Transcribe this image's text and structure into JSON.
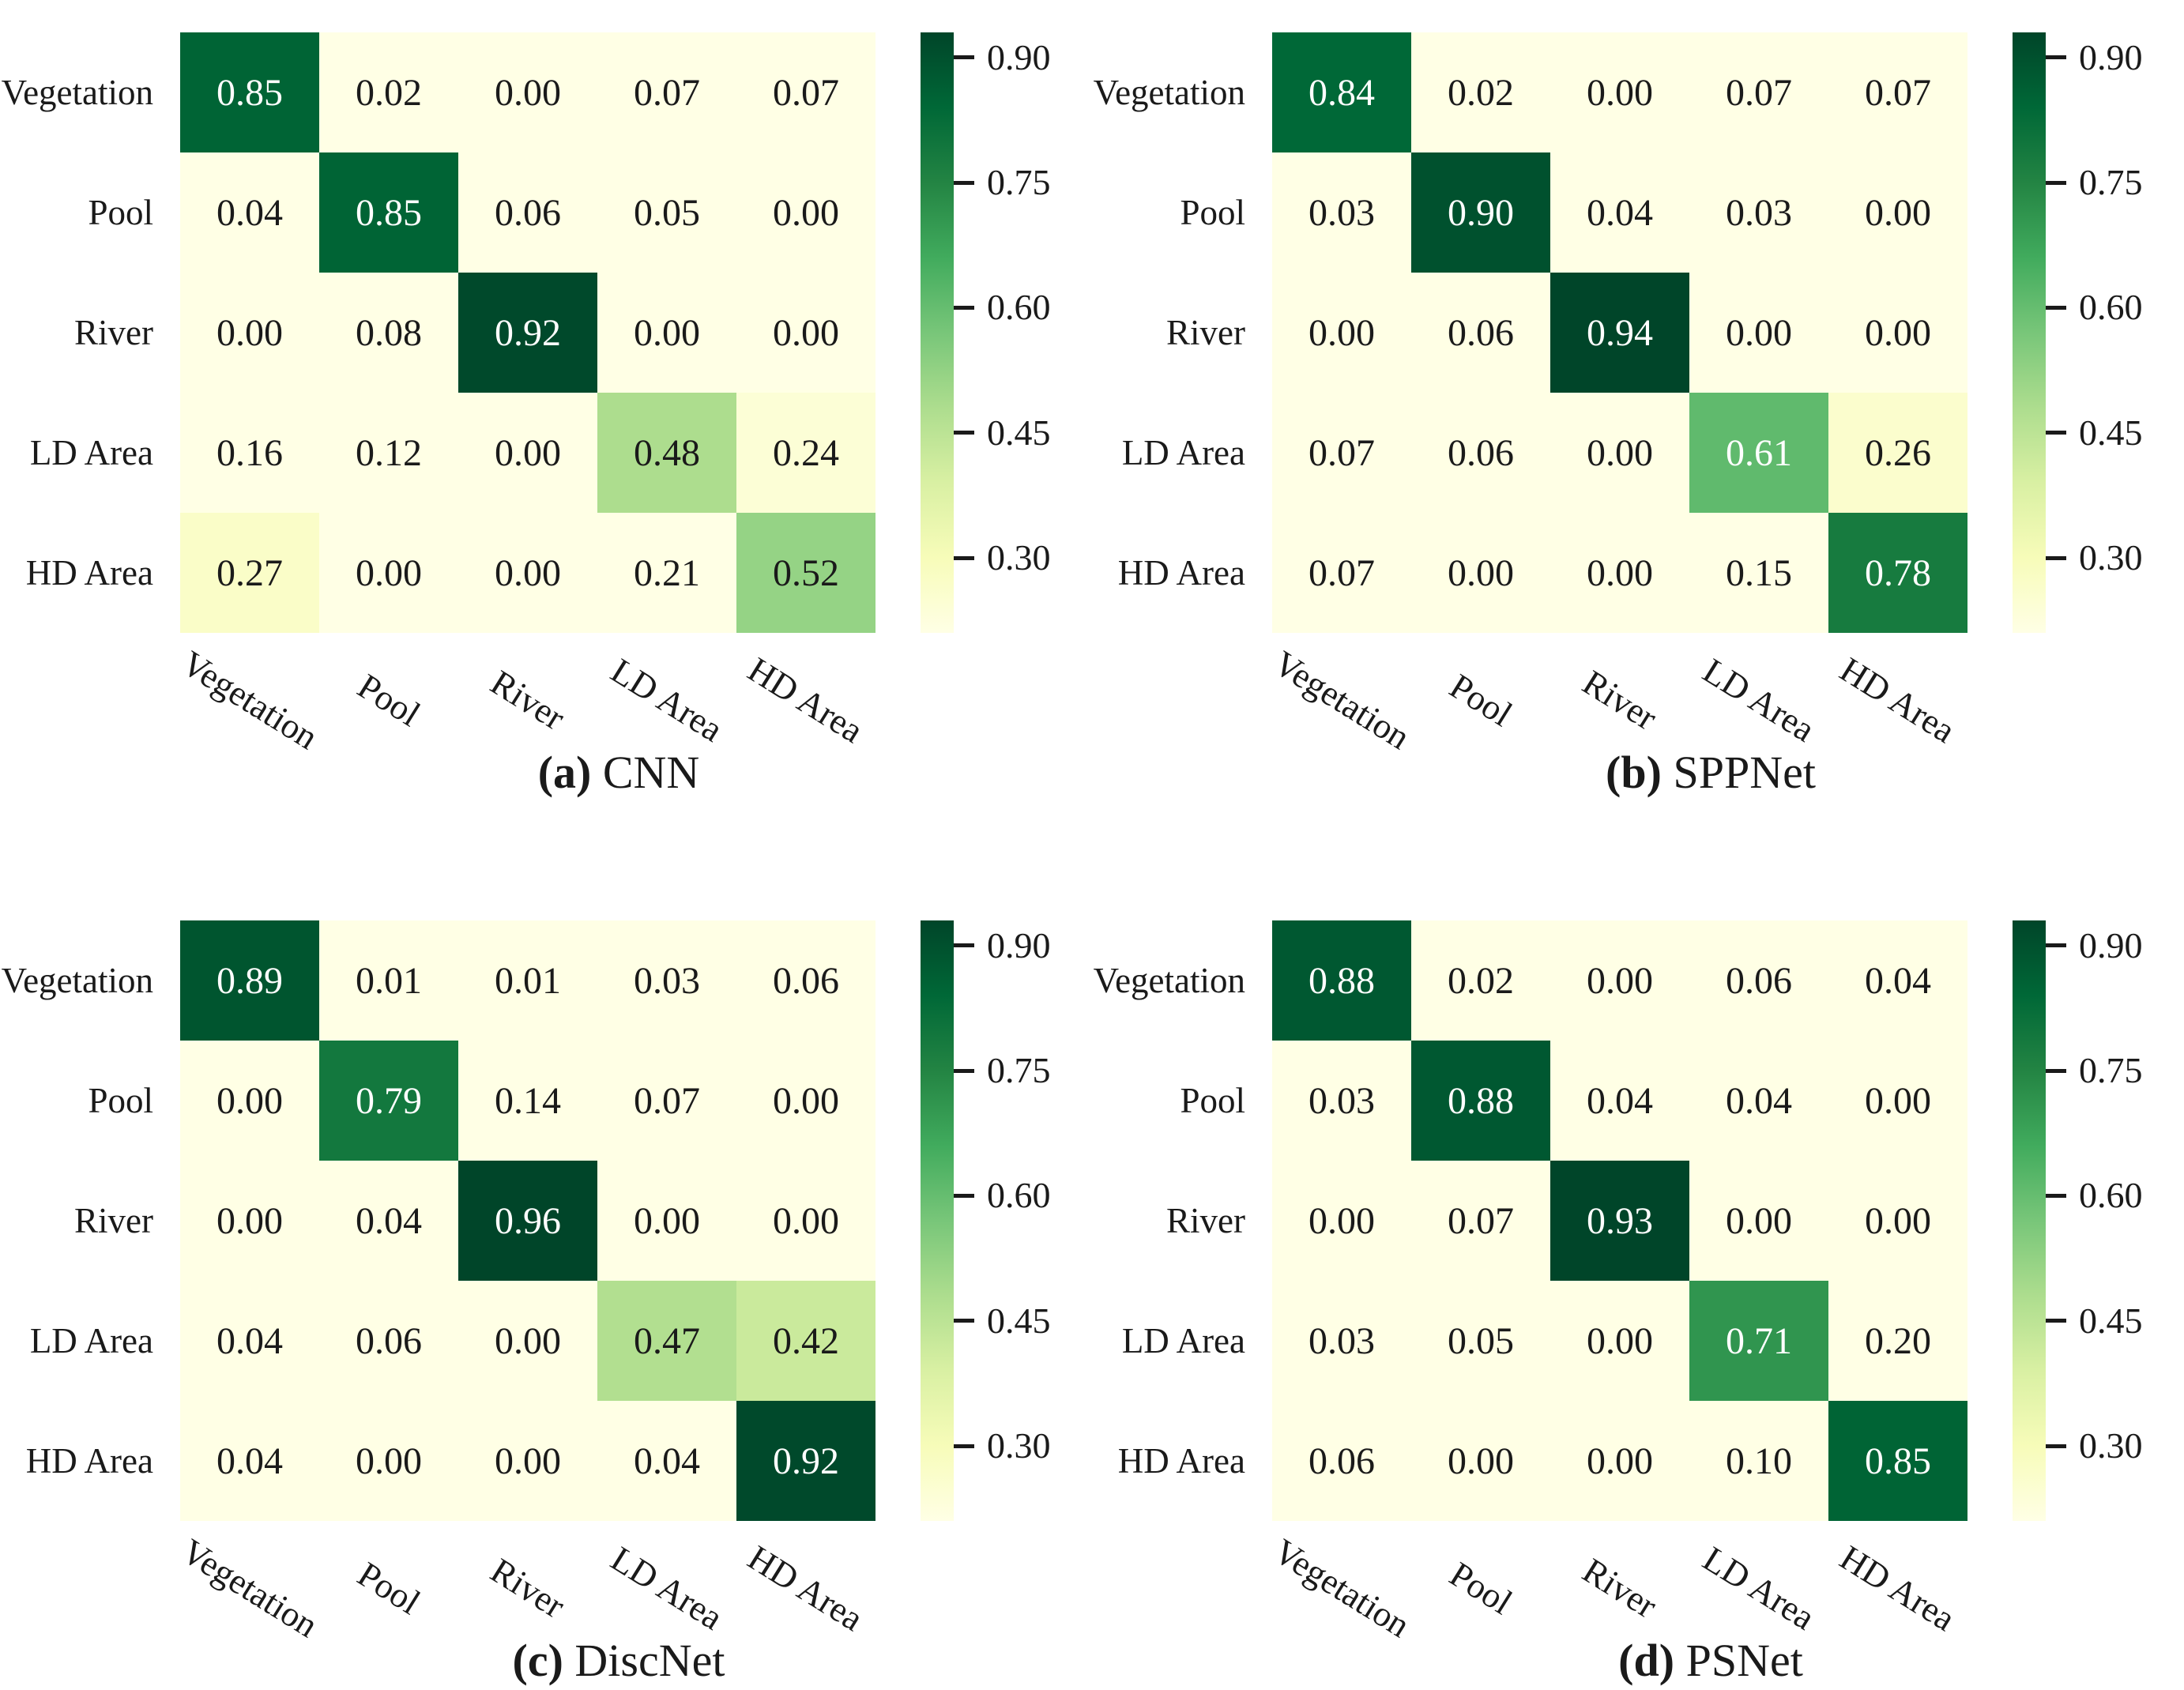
{
  "figure": {
    "background": "#ffffff",
    "text_color": "#1a1a1a"
  },
  "colormap": {
    "name": "YlGn",
    "stops": [
      "#ffffe5",
      "#f7fcb9",
      "#d9f0a3",
      "#addd8e",
      "#78c679",
      "#41ab5d",
      "#238443",
      "#006837",
      "#004529"
    ],
    "vmin": 0.21,
    "vmax": 0.93,
    "white_text_threshold": 0.5,
    "cell_text_dark": "#1a1a1a",
    "cell_text_light": "#ffffff"
  },
  "classes": [
    "Vegetation",
    "Pool",
    "River",
    "LD Area",
    "HD Area"
  ],
  "chart_data": [
    {
      "type": "heatmap",
      "caption_tag": "(a)",
      "caption_name": "CNN",
      "rows": [
        "Vegetation",
        "Pool",
        "River",
        "LD Area",
        "HD Area"
      ],
      "cols": [
        "Vegetation",
        "Pool",
        "River",
        "LD Area",
        "HD Area"
      ],
      "matrix": [
        [
          0.85,
          0.02,
          0.0,
          0.07,
          0.07
        ],
        [
          0.04,
          0.85,
          0.06,
          0.05,
          0.0
        ],
        [
          0.0,
          0.08,
          0.92,
          0.0,
          0.0
        ],
        [
          0.16,
          0.12,
          0.0,
          0.48,
          0.24
        ],
        [
          0.27,
          0.0,
          0.0,
          0.21,
          0.52
        ]
      ],
      "colorbar_ticks": [
        0.9,
        0.75,
        0.6,
        0.45,
        0.3
      ]
    },
    {
      "type": "heatmap",
      "caption_tag": "(b)",
      "caption_name": "SPPNet",
      "rows": [
        "Vegetation",
        "Pool",
        "River",
        "LD Area",
        "HD Area"
      ],
      "cols": [
        "Vegetation",
        "Pool",
        "River",
        "LD Area",
        "HD Area"
      ],
      "matrix": [
        [
          0.84,
          0.02,
          0.0,
          0.07,
          0.07
        ],
        [
          0.03,
          0.9,
          0.04,
          0.03,
          0.0
        ],
        [
          0.0,
          0.06,
          0.94,
          0.0,
          0.0
        ],
        [
          0.07,
          0.06,
          0.0,
          0.61,
          0.26
        ],
        [
          0.07,
          0.0,
          0.0,
          0.15,
          0.78
        ]
      ],
      "colorbar_ticks": [
        0.9,
        0.75,
        0.6,
        0.45,
        0.3
      ]
    },
    {
      "type": "heatmap",
      "caption_tag": "(c)",
      "caption_name": "DiscNet",
      "rows": [
        "Vegetation",
        "Pool",
        "River",
        "LD Area",
        "HD Area"
      ],
      "cols": [
        "Vegetation",
        "Pool",
        "River",
        "LD Area",
        "HD Area"
      ],
      "matrix": [
        [
          0.89,
          0.01,
          0.01,
          0.03,
          0.06
        ],
        [
          0.0,
          0.79,
          0.14,
          0.07,
          0.0
        ],
        [
          0.0,
          0.04,
          0.96,
          0.0,
          0.0
        ],
        [
          0.04,
          0.06,
          0.0,
          0.47,
          0.42
        ],
        [
          0.04,
          0.0,
          0.0,
          0.04,
          0.92
        ]
      ],
      "colorbar_ticks": [
        0.9,
        0.75,
        0.6,
        0.45,
        0.3
      ]
    },
    {
      "type": "heatmap",
      "caption_tag": "(d)",
      "caption_name": "PSNet",
      "rows": [
        "Vegetation",
        "Pool",
        "River",
        "LD Area",
        "HD Area"
      ],
      "cols": [
        "Vegetation",
        "Pool",
        "River",
        "LD Area",
        "HD Area"
      ],
      "matrix": [
        [
          0.88,
          0.02,
          0.0,
          0.06,
          0.04
        ],
        [
          0.03,
          0.88,
          0.04,
          0.04,
          0.0
        ],
        [
          0.0,
          0.07,
          0.93,
          0.0,
          0.0
        ],
        [
          0.03,
          0.05,
          0.0,
          0.71,
          0.2
        ],
        [
          0.06,
          0.0,
          0.0,
          0.1,
          0.85
        ]
      ],
      "colorbar_ticks": [
        0.9,
        0.75,
        0.6,
        0.45,
        0.3
      ]
    }
  ]
}
